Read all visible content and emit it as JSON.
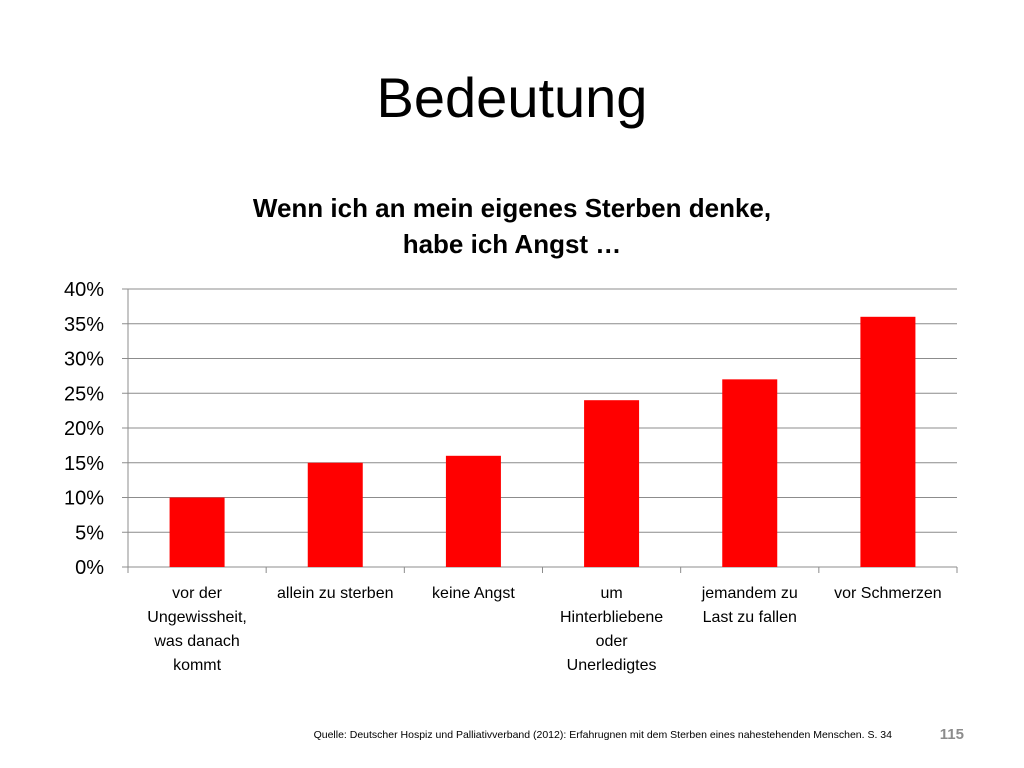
{
  "slide": {
    "title": "Bedeutung",
    "source": "Quelle: Deutscher Hospiz und Palliativverband (2012): Erfahrugnen mit dem Sterben eines nahestehenden Menschen. S. 34",
    "page_number": "115"
  },
  "chart_data": {
    "type": "bar",
    "title_lines": [
      "Wenn ich an mein eigenes Sterben denke,",
      "habe ich Angst …"
    ],
    "categories": [
      [
        "vor der",
        "Ungewissheit,",
        "was danach",
        "kommt"
      ],
      [
        "allein zu sterben"
      ],
      [
        "keine Angst"
      ],
      [
        "um",
        "Hinterbliebene",
        "oder",
        "Unerledigtes"
      ],
      [
        "jemandem zu",
        "Last zu fallen"
      ],
      [
        "vor Schmerzen"
      ]
    ],
    "values": [
      10,
      15,
      16,
      24,
      27,
      36
    ],
    "value_unit": "percent",
    "ylim": [
      0,
      40
    ],
    "ytick_step": 5,
    "ytick_labels": [
      "0%",
      "5%",
      "10%",
      "15%",
      "20%",
      "25%",
      "30%",
      "35%",
      "40%"
    ],
    "grid": true,
    "legend": "none",
    "bar_color": "#ff0000",
    "gridline_color": "#8c8c8c"
  }
}
